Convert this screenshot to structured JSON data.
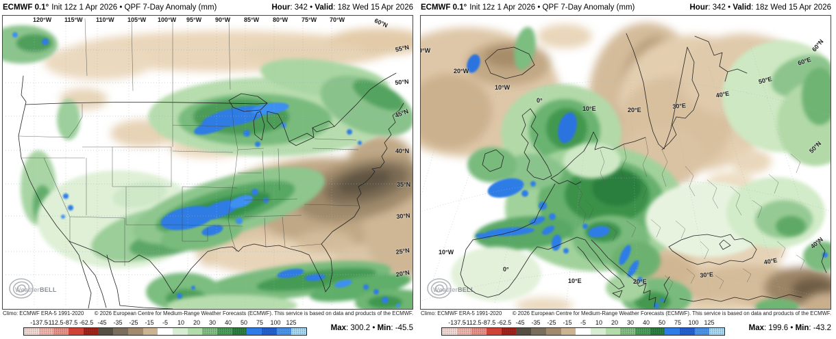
{
  "colorbar": {
    "ticks": [
      "-137.5",
      "-112.5",
      "-87.5",
      "-62.5",
      "-45",
      "-35",
      "-25",
      "-15",
      "-5",
      "10",
      "20",
      "30",
      "40",
      "50",
      "75",
      "100",
      "125"
    ],
    "cells": [
      {
        "color": "#f6ded9",
        "dots": true
      },
      {
        "color": "#f2bab1",
        "dots": true
      },
      {
        "color": "#eb968c",
        "dots": true
      },
      {
        "color": "#ce4335",
        "dots": false
      },
      {
        "color": "#a3251c",
        "dots": true
      },
      {
        "color": "#574e43",
        "dots": false
      },
      {
        "color": "#7b6d5c",
        "dots": false
      },
      {
        "color": "#a18a6e",
        "dots": false
      },
      {
        "color": "#ccb492",
        "dots": false
      },
      {
        "color": "#ffffff",
        "dots": false
      },
      {
        "color": "#d7ecd0",
        "dots": false
      },
      {
        "color": "#b2dcaa",
        "dots": false
      },
      {
        "color": "#86c287",
        "dots": true
      },
      {
        "color": "#4f9f5c",
        "dots": true
      },
      {
        "color": "#2f8043",
        "dots": true
      },
      {
        "color": "#2e7ce6",
        "dots": false
      },
      {
        "color": "#2563d4",
        "dots": true
      },
      {
        "color": "#4f97ee",
        "dots": true
      },
      {
        "color": "#aadcf6",
        "dots": true
      }
    ]
  },
  "watermark": {
    "name_light": "Weather",
    "name_bold": "BELL"
  },
  "panels": [
    {
      "title_bold": "ECMWF 0.1°",
      "title_rest": "Init 12z 1 Apr 2026 • QPF 7-Day Anomaly (mm)",
      "hour_label": "Hour",
      "hour_value": "342",
      "valid_label": "Valid",
      "valid_value": "18z Wed 15 Apr 2026",
      "sep_colon": ": ",
      "sep_dot": " • ",
      "climo": "Climo: ECMWF ERA-5 1991-2020",
      "copyright": "© 2026 European Centre for Medium-Range Weather Forecasts (ECMWF). This service is based on data and products of the ECMWF.",
      "max_label": "Max",
      "max_value": "300.2",
      "min_label": "Min",
      "min_value": "-45.5",
      "graticule_labels": [
        "120°W",
        "115°W",
        "110°W",
        "105°W",
        "100°W",
        "95°W",
        "90°W",
        "85°W",
        "80°W",
        "75°W",
        "70°W",
        "60°N",
        "55°N",
        "50°N",
        "45°N",
        "40°N",
        "35°N",
        "30°N",
        "25°N",
        "20°N"
      ]
    },
    {
      "title_bold": "ECMWF 0.1°",
      "title_rest": "Init 12z 1 Apr 2026 • QPF 7-Day Anomaly (mm)",
      "hour_label": "Hour",
      "hour_value": "342",
      "valid_label": "Valid",
      "valid_value": "18z Wed 15 Apr 2026",
      "sep_colon": ": ",
      "sep_dot": " • ",
      "climo": "Climo: ECMWF ERA-5 1991-2020",
      "copyright": "© 2026 European Centre for Medium-Range Weather Forecasts (ECMWF). This service is based on data and products of the ECMWF.",
      "max_label": "Max",
      "max_value": "199.6",
      "min_label": "Min",
      "min_value": "-43.2",
      "graticule_labels": [
        "30°W",
        "20°W",
        "10°W",
        "0°",
        "10°E",
        "20°E",
        "30°E",
        "40°E",
        "50°E",
        "60°E",
        "60°N",
        "50°N",
        "40°N",
        "10°W",
        "0°",
        "10°E",
        "20°E",
        "30°E",
        "40°E"
      ]
    }
  ]
}
